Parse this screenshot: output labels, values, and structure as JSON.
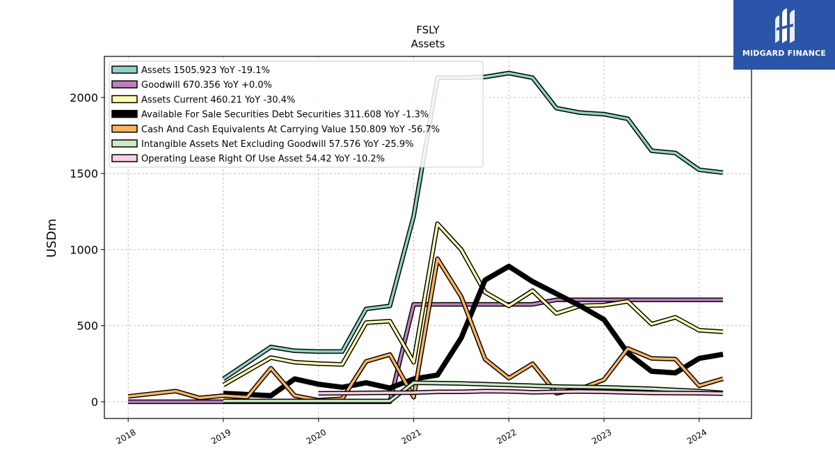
{
  "brand": {
    "name": "MIDGARD FINANCE",
    "color": "#2a55a8",
    "logo_icon": "midgard-logo-icon"
  },
  "chart_data": {
    "type": "line",
    "title": "FSLY",
    "subtitle": "Assets",
    "ylabel": "USDm",
    "xlabel": "",
    "xlim": [
      2017.75,
      2024.55
    ],
    "ylim": [
      -110,
      2270
    ],
    "x_ticks": [
      2018,
      2019,
      2020,
      2021,
      2022,
      2023,
      2024
    ],
    "x_tick_labels": [
      "2018",
      "2019",
      "2020",
      "2021",
      "2022",
      "2023",
      "2024"
    ],
    "y_ticks": [
      0,
      500,
      1000,
      1500,
      2000
    ],
    "y_tick_labels": [
      "0",
      "500",
      "1000",
      "1500",
      "2000"
    ],
    "grid": true,
    "legend_position": "top-left",
    "series": [
      {
        "name": "Assets",
        "legend": "Assets  1505.923 YoY -19.1%",
        "color": "#8dd3c7",
        "width": 3.5,
        "x": [
          2019.0,
          2019.5,
          2019.75,
          2020.0,
          2020.25,
          2020.5,
          2020.75,
          2021.0,
          2021.25,
          2021.5,
          2021.75,
          2022.0,
          2022.25,
          2022.5,
          2022.75,
          2023.0,
          2023.25,
          2023.5,
          2023.75,
          2024.0,
          2024.25
        ],
        "y": [
          150,
          360,
          335,
          330,
          330,
          610,
          630,
          1220,
          2130,
          2130,
          2135,
          2160,
          2130,
          1930,
          1900,
          1890,
          1860,
          1650,
          1635,
          1525,
          1506
        ]
      },
      {
        "name": "Goodwill",
        "legend": "Goodwill  670.356 YoY +0.0%",
        "color": "#bc80bd",
        "width": 3.5,
        "x": [
          2018.0,
          2019.0,
          2019.5,
          2020.0,
          2020.5,
          2020.75,
          2021.0,
          2021.25,
          2021.5,
          2021.75,
          2022.0,
          2022.25,
          2022.5,
          2022.75,
          2023.0,
          2023.5,
          2024.0,
          2024.25
        ],
        "y": [
          0,
          0,
          0,
          0,
          0,
          0,
          640,
          640,
          640,
          640,
          640,
          640,
          670,
          670,
          670,
          670,
          670,
          670
        ]
      },
      {
        "name": "Assets Current",
        "legend": "Assets Current  460.21 YoY -30.4%",
        "color": "#ffffb3",
        "width": 3.5,
        "x": [
          2019.0,
          2019.5,
          2019.75,
          2020.0,
          2020.25,
          2020.5,
          2020.75,
          2021.0,
          2021.25,
          2021.5,
          2021.75,
          2022.0,
          2022.25,
          2022.5,
          2022.75,
          2023.0,
          2023.25,
          2023.5,
          2023.75,
          2024.0,
          2024.25
        ],
        "y": [
          110,
          290,
          260,
          250,
          245,
          520,
          530,
          260,
          1170,
          1000,
          720,
          630,
          730,
          580,
          630,
          635,
          660,
          510,
          555,
          470,
          460
        ]
      },
      {
        "name": "Available For Sale Securities Debt Securities",
        "legend": "Available For Sale Securities Debt Securities  311.608 YoY -1.3%",
        "color": "#000000",
        "width": 7.5,
        "x": [
          2019.0,
          2019.5,
          2019.75,
          2020.0,
          2020.25,
          2020.5,
          2020.75,
          2021.0,
          2021.25,
          2021.5,
          2021.75,
          2022.0,
          2022.25,
          2022.5,
          2022.75,
          2023.0,
          2023.25,
          2023.5,
          2023.75,
          2024.0,
          2024.25
        ],
        "y": [
          55,
          40,
          150,
          115,
          95,
          125,
          90,
          150,
          175,
          420,
          800,
          890,
          790,
          710,
          630,
          540,
          320,
          200,
          190,
          285,
          312
        ]
      },
      {
        "name": "Cash And Cash Equivalents At Carrying Value",
        "legend": "Cash And Cash Equivalents At Carrying Value  150.809 YoY -56.7%",
        "color": "#fdb462",
        "width": 3.5,
        "x": [
          2018.0,
          2018.5,
          2018.75,
          2019.0,
          2019.25,
          2019.5,
          2019.75,
          2020.0,
          2020.25,
          2020.5,
          2020.75,
          2021.0,
          2021.25,
          2021.5,
          2021.75,
          2022.0,
          2022.25,
          2022.5,
          2022.75,
          2023.0,
          2023.25,
          2023.5,
          2023.75,
          2024.0,
          2024.25
        ],
        "y": [
          35,
          70,
          25,
          40,
          30,
          220,
          40,
          10,
          20,
          265,
          310,
          30,
          940,
          690,
          280,
          155,
          250,
          55,
          85,
          145,
          350,
          285,
          280,
          105,
          151
        ]
      },
      {
        "name": "Intangible Assets Net Excluding Goodwill",
        "legend": "Intangible Assets Net Excluding Goodwill  57.576 YoY -25.9%",
        "color": "#ccebc5",
        "width": 3.5,
        "x": [
          2019.0,
          2019.5,
          2020.0,
          2020.5,
          2020.75,
          2021.0,
          2021.5,
          2022.0,
          2022.5,
          2023.0,
          2023.5,
          2024.0,
          2024.25
        ],
        "y": [
          5,
          5,
          5,
          5,
          5,
          125,
          120,
          110,
          100,
          95,
          85,
          70,
          58
        ]
      },
      {
        "name": "Operating Lease Right Of Use Asset",
        "legend": "Operating Lease Right Of Use Asset  54.42 YoY -10.2%",
        "color": "#fccde5",
        "width": 3.5,
        "x": [
          2020.0,
          2020.5,
          2021.0,
          2021.25,
          2021.5,
          2021.75,
          2022.0,
          2022.25,
          2022.5,
          2022.75,
          2023.0,
          2023.5,
          2024.0,
          2024.25
        ],
        "y": [
          55,
          58,
          60,
          65,
          65,
          70,
          68,
          62,
          65,
          68,
          65,
          58,
          56,
          54
        ]
      }
    ]
  }
}
